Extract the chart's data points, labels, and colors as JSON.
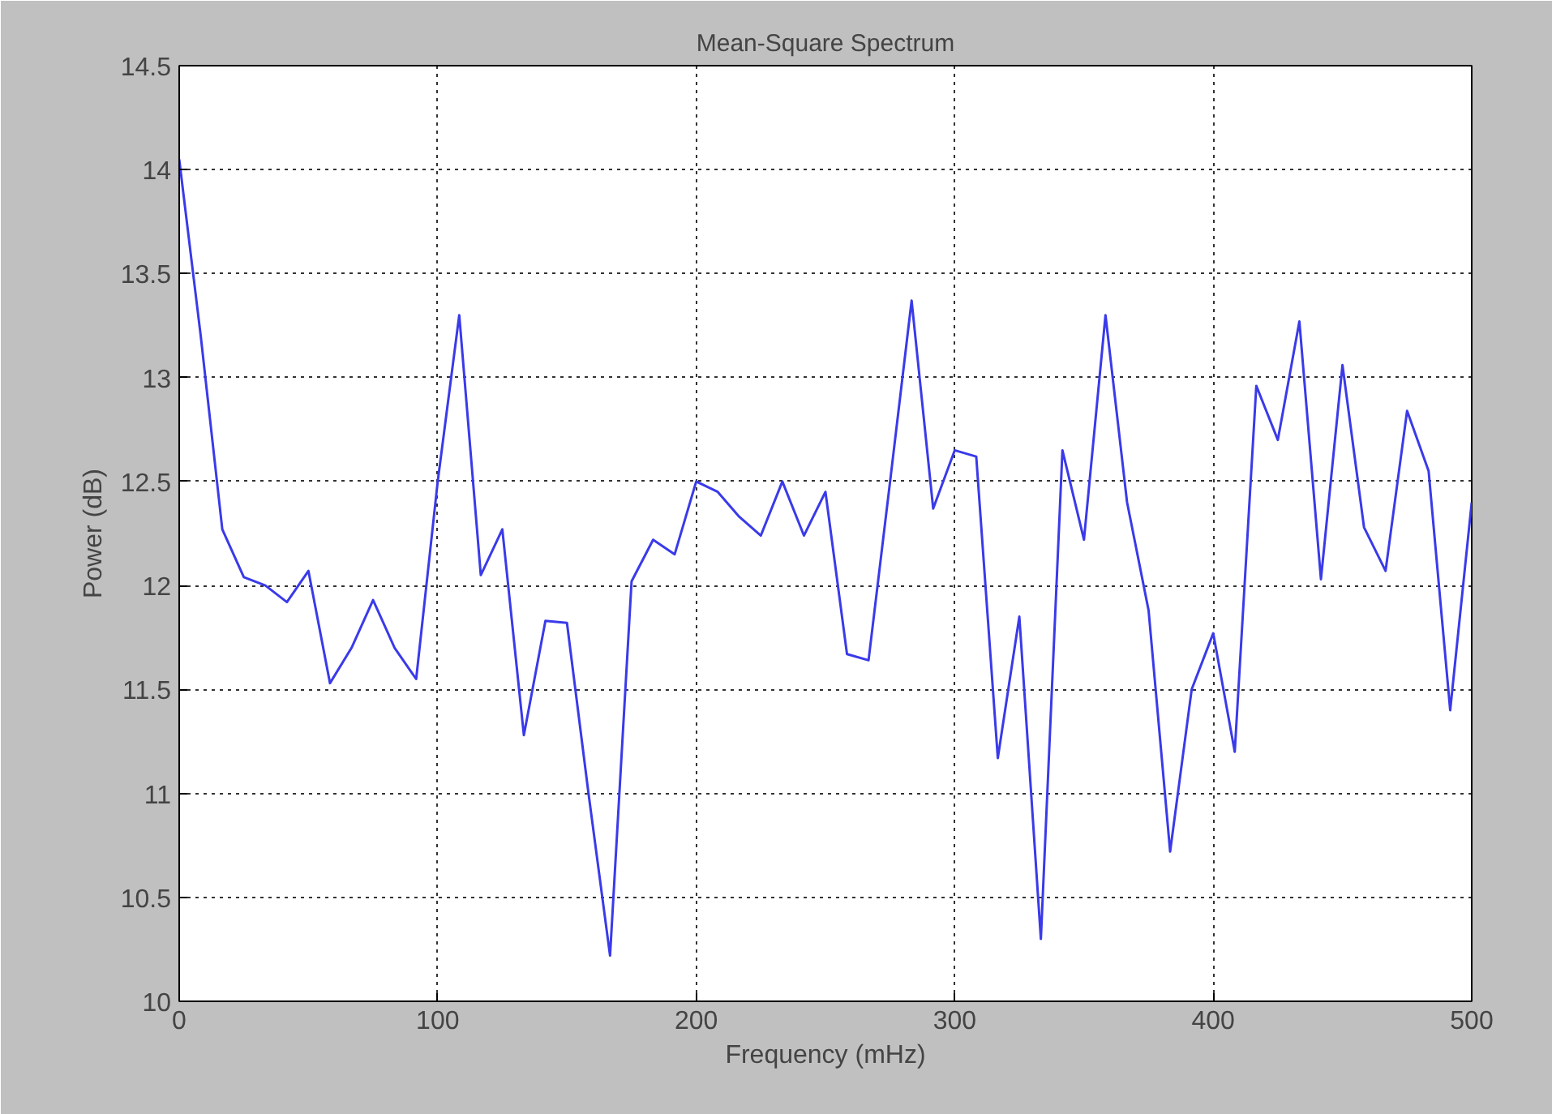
{
  "chart_data": {
    "type": "line",
    "title": "Mean-Square Spectrum",
    "xlabel": "Frequency (mHz)",
    "ylabel": "Power (dB)",
    "x": [
      0,
      8.33,
      16.67,
      25,
      33.33,
      41.67,
      50,
      58.33,
      66.67,
      75,
      83.33,
      91.67,
      100,
      108.33,
      116.67,
      125,
      133.33,
      141.67,
      150,
      158.33,
      166.67,
      175,
      183.33,
      191.67,
      200,
      208.33,
      216.67,
      225,
      233.33,
      241.67,
      250,
      258.33,
      266.67,
      275,
      283.33,
      291.67,
      300,
      308.33,
      316.67,
      325,
      333.33,
      341.67,
      350,
      358.33,
      366.67,
      375,
      383.33,
      391.67,
      400,
      408.33,
      416.67,
      425,
      433.33,
      441.67,
      450,
      458.33,
      466.67,
      475,
      483.33,
      491.67,
      500
    ],
    "series": [
      {
        "color": "#3a3aea",
        "values": [
          14.05,
          13.2,
          12.27,
          12.04,
          12.0,
          11.92,
          12.07,
          11.53,
          11.7,
          11.93,
          11.7,
          11.55,
          12.5,
          13.3,
          12.05,
          12.27,
          11.28,
          11.83,
          11.82,
          11.0,
          10.22,
          12.02,
          12.22,
          12.15,
          12.5,
          12.45,
          12.33,
          12.24,
          12.5,
          12.24,
          12.45,
          11.67,
          11.64,
          12.5,
          13.37,
          12.37,
          12.65,
          12.62,
          11.17,
          11.85,
          10.3,
          12.65,
          12.22,
          13.3,
          12.4,
          11.88,
          10.72,
          11.5,
          11.77,
          11.2,
          12.96,
          12.7,
          13.27,
          12.03,
          13.06,
          12.28,
          12.07,
          12.84,
          12.55,
          11.4,
          12.4
        ]
      }
    ],
    "xlim": [
      0,
      500
    ],
    "ylim": [
      10,
      14.5
    ],
    "xticks": [
      0,
      100,
      200,
      300,
      400,
      500
    ],
    "yticks": [
      10,
      10.5,
      11,
      11.5,
      12,
      12.5,
      13,
      13.5,
      14,
      14.5
    ],
    "grid": true,
    "line_style": "solid"
  }
}
